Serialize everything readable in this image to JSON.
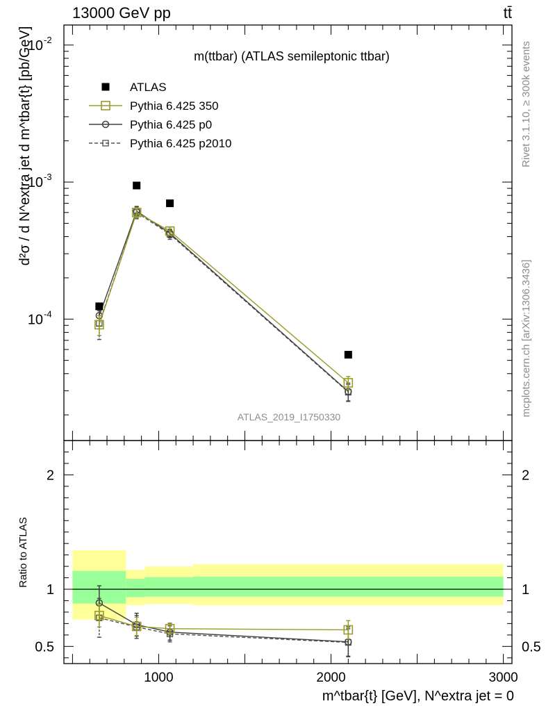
{
  "header": {
    "energy_label": "13000 GeV pp",
    "process_label": "tt̄"
  },
  "side_labels": {
    "rivet": "Rivet 3.1.10, ≥ 300k events",
    "mcplots": "mcplots.cern.ch [arXiv:1306.3436]"
  },
  "watermark": "ATLAS_2019_I1750330",
  "colors": {
    "atlas": "#000000",
    "p350": "#9a9a2a",
    "p0": "#404040",
    "p2010": "#505050",
    "band_inner": "#99ff99",
    "band_outer": "#ffff99"
  },
  "chart_data": [
    {
      "type": "scatter",
      "panel": "main",
      "title": "m(ttbar) (ATLAS semileptonic ttbar)",
      "ylabel": "d²σ / d N^extra jet d m^tbar{t} [pb/GeV]",
      "yscale": "log",
      "xlim": [
        450,
        3050
      ],
      "ylim": [
        1.3e-05,
        0.014
      ],
      "y_tick_labels": [
        "10^-4",
        "10^-3",
        "10^-2"
      ],
      "legend_position": "top-left",
      "series": [
        {
          "name": "ATLAS",
          "style": "filled-square",
          "x": [
            655,
            872,
            1065,
            2100
          ],
          "y": [
            0.000124,
            0.000944,
            0.0007,
            5.5e-05
          ]
        },
        {
          "name": "Pythia 6.425 350",
          "style": "open-square-line",
          "x": [
            655,
            872,
            1065,
            2100
          ],
          "y": [
            9.1e-05,
            0.0006,
            0.000439,
            3.43e-05
          ],
          "err": [
            1.5e-05,
            5e-05,
            3e-05,
            3.8e-06
          ]
        },
        {
          "name": "Pythia 6.425 p0",
          "style": "open-circle-line",
          "x": [
            655,
            872,
            1065,
            2100
          ],
          "y": [
            0.000106,
            0.000614,
            0.000423,
            2.96e-05
          ],
          "err": [
            1.7e-05,
            5e-05,
            3e-05,
            4.5e-06
          ]
        },
        {
          "name": "Pythia 6.425 p2010",
          "style": "open-square-dashed",
          "x": [
            655,
            872,
            1065,
            2100
          ],
          "y": [
            9.3e-05,
            0.0006,
            0.000416,
            2.93e-05
          ],
          "err": [
            2.2e-05,
            6e-05,
            3.4e-05,
            4e-06
          ]
        }
      ]
    },
    {
      "type": "scatter",
      "panel": "ratio",
      "ylabel": "Ratio to ATLAS",
      "xlabel": "m^tbar{t} [GeV], N^extra jet = 0",
      "xlim": [
        450,
        3050
      ],
      "ylim": [
        0.35,
        2.3
      ],
      "x_ticks": [
        1000,
        2000,
        3000
      ],
      "y_ticks": [
        0.5,
        1,
        2
      ],
      "bands": [
        {
          "x0": 500,
          "x1": 810,
          "inner": [
            0.875,
            1.16
          ],
          "outer": [
            0.735,
            1.34
          ]
        },
        {
          "x0": 810,
          "x1": 920,
          "inner": [
            0.93,
            1.09
          ],
          "outer": [
            0.86,
            1.17
          ]
        },
        {
          "x0": 920,
          "x1": 1200,
          "inner": [
            0.935,
            1.105
          ],
          "outer": [
            0.87,
            1.2
          ]
        },
        {
          "x0": 1200,
          "x1": 3000,
          "inner": [
            0.935,
            1.11
          ],
          "outer": [
            0.86,
            1.22
          ]
        }
      ],
      "series": [
        {
          "name": "Pythia 6.425 350",
          "style": "open-square-line",
          "x": [
            655,
            872,
            1065,
            2100
          ],
          "y": [
            0.77,
            0.675,
            0.655,
            0.645
          ],
          "err": [
            0.1,
            0.08,
            0.05,
            0.08
          ]
        },
        {
          "name": "Pythia 6.425 p0",
          "style": "open-circle-line",
          "x": [
            655,
            872,
            1065,
            2100
          ],
          "y": [
            0.88,
            0.69,
            0.625,
            0.54
          ],
          "err": [
            0.15,
            0.1,
            0.07,
            0.13
          ]
        },
        {
          "name": "Pythia 6.425 p2010",
          "style": "open-square-dashed",
          "x": [
            655,
            872,
            1065,
            2100
          ],
          "y": [
            0.75,
            0.67,
            0.61,
            0.535
          ],
          "err": [
            0.17,
            0.1,
            0.07,
            0.12
          ]
        }
      ]
    }
  ]
}
